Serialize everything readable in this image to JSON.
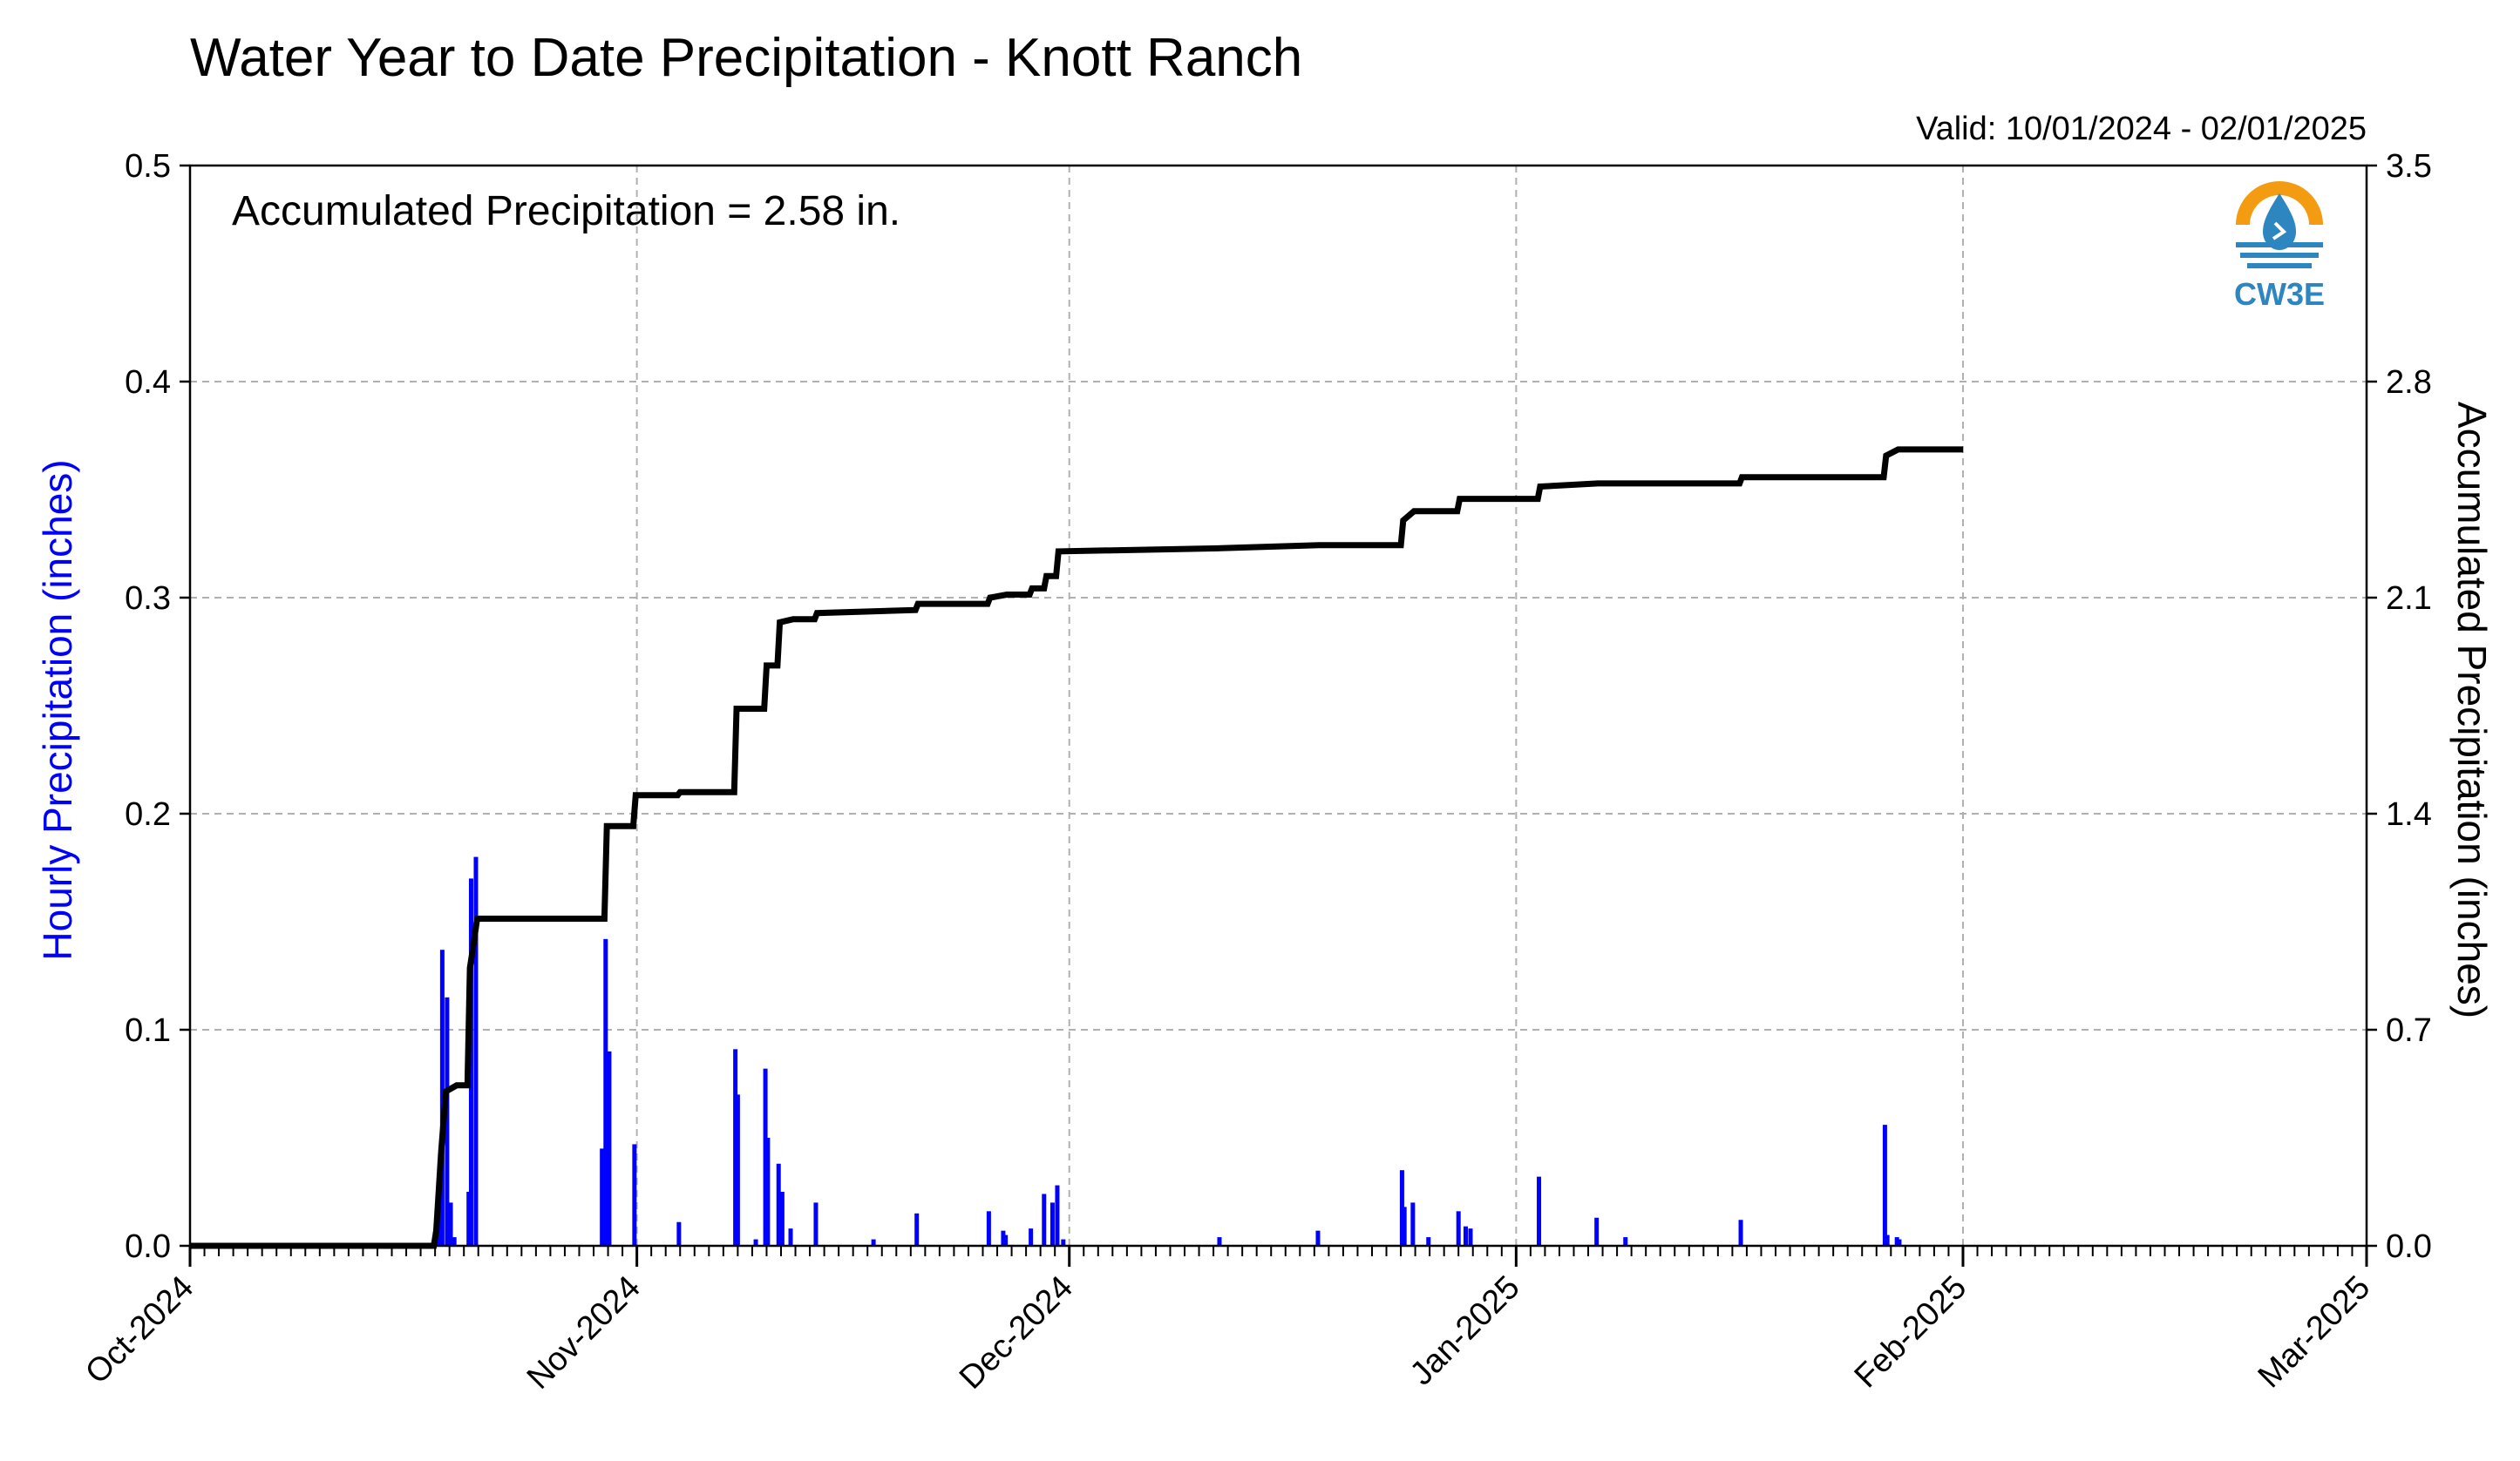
{
  "header": {
    "title": "Water Year to Date Precipitation - Knott Ranch",
    "valid": "Valid: 10/01/2024 - 02/01/2025"
  },
  "logo": {
    "text": "CW3E",
    "icon": "water-drop-sun-icon",
    "colors": [
      "#f39c12",
      "#2e86c1"
    ]
  },
  "annotation": "Accumulated Precipitation = 2.58 in.",
  "chart_data": {
    "type": "bar+line",
    "title": "Water Year to Date Precipitation - Knott Ranch",
    "subtitle": "Valid: 10/01/2024 - 02/01/2025",
    "ylabel_left": "Hourly Precipitation (inches)",
    "ylabel_right": "Accumulated Precipitation (inches)",
    "x_range": [
      "2024-10-01",
      "2025-03-01"
    ],
    "x_ticks": [
      "Oct-2024",
      "Nov-2024",
      "Dec-2024",
      "Jan-2025",
      "Feb-2025",
      "Mar-2025"
    ],
    "x_tick_days": [
      0,
      31,
      61,
      92,
      123,
      151
    ],
    "ylim_left": [
      0,
      0.5
    ],
    "yticks_left": [
      "0.0",
      "0.1",
      "0.2",
      "0.3",
      "0.4",
      "0.5"
    ],
    "ylim_right": [
      0,
      3.5
    ],
    "yticks_right": [
      "0.0",
      "0.7",
      "1.4",
      "2.1",
      "2.8",
      "3.5"
    ],
    "grid": true,
    "colors": {
      "hourly": "#0000ff",
      "accumulated": "#000000"
    },
    "hourly_series": {
      "name": "Hourly Precipitation (inches)",
      "points": [
        [
          "2024-10-18 00:00",
          0.005
        ],
        [
          "2024-10-18 06:00",
          0.03
        ],
        [
          "2024-10-18 12:00",
          0.137
        ],
        [
          "2024-10-18 20:00",
          0.115
        ],
        [
          "2024-10-19 02:00",
          0.02
        ],
        [
          "2024-10-19 08:00",
          0.004
        ],
        [
          "2024-10-20 08:00",
          0.025
        ],
        [
          "2024-10-20 12:00",
          0.17
        ],
        [
          "2024-10-20 20:00",
          0.18
        ],
        [
          "2024-10-29 14:00",
          0.045
        ],
        [
          "2024-10-29 20:00",
          0.142
        ],
        [
          "2024-10-30 02:00",
          0.09
        ],
        [
          "2024-10-31 20:00",
          0.047
        ],
        [
          "2024-11-03 22:00",
          0.011
        ],
        [
          "2024-11-07 20:00",
          0.091
        ],
        [
          "2024-11-08 00:00",
          0.07
        ],
        [
          "2024-11-09 06:00",
          0.003
        ],
        [
          "2024-11-09 22:00",
          0.082
        ],
        [
          "2024-11-10 02:00",
          0.05
        ],
        [
          "2024-11-10 20:00",
          0.038
        ],
        [
          "2024-11-11 02:00",
          0.025
        ],
        [
          "2024-11-11 16:00",
          0.008
        ],
        [
          "2024-11-13 10:00",
          0.02
        ],
        [
          "2024-11-17 10:00",
          0.003
        ],
        [
          "2024-11-20 10:00",
          0.015
        ],
        [
          "2024-11-25 10:00",
          0.016
        ],
        [
          "2024-11-26 10:00",
          0.007
        ],
        [
          "2024-11-26 14:00",
          0.005
        ],
        [
          "2024-11-28 08:00",
          0.008
        ],
        [
          "2024-11-29 06:00",
          0.024
        ],
        [
          "2024-11-29 20:00",
          0.02
        ],
        [
          "2024-11-30 04:00",
          0.028
        ],
        [
          "2024-11-30 14:00",
          0.003
        ],
        [
          "2024-12-11 10:00",
          0.004
        ],
        [
          "2024-12-18 06:00",
          0.007
        ],
        [
          "2024-12-24 02:00",
          0.035
        ],
        [
          "2024-12-24 06:00",
          0.018
        ],
        [
          "2024-12-24 20:00",
          0.02
        ],
        [
          "2024-12-25 22:00",
          0.004
        ],
        [
          "2024-12-28 00:00",
          0.016
        ],
        [
          "2024-12-28 12:00",
          0.009
        ],
        [
          "2024-12-28 20:00",
          0.008
        ],
        [
          "2025-01-02 14:00",
          0.032
        ],
        [
          "2025-01-06 14:00",
          0.013
        ],
        [
          "2025-01-08 14:00",
          0.004
        ],
        [
          "2025-01-16 14:00",
          0.012
        ],
        [
          "2025-01-26 14:00",
          0.056
        ],
        [
          "2025-01-26 18:00",
          0.005
        ],
        [
          "2025-01-27 10:00",
          0.004
        ],
        [
          "2025-01-27 14:00",
          0.003
        ]
      ]
    },
    "accumulated_series": {
      "name": "Accumulated Precipitation (inches)",
      "points": [
        [
          "2024-10-01 00:00",
          0.0
        ],
        [
          "2024-10-17 22:00",
          0.0
        ],
        [
          "2024-10-18 02:00",
          0.05
        ],
        [
          "2024-10-18 10:00",
          0.3
        ],
        [
          "2024-10-18 18:00",
          0.5
        ],
        [
          "2024-10-19 12:00",
          0.52
        ],
        [
          "2024-10-20 06:00",
          0.52
        ],
        [
          "2024-10-20 10:00",
          0.9
        ],
        [
          "2024-10-20 14:00",
          0.95
        ],
        [
          "2024-10-20 22:00",
          1.06
        ],
        [
          "2024-10-29 18:00",
          1.06
        ],
        [
          "2024-10-29 22:00",
          1.36
        ],
        [
          "2024-10-31 18:00",
          1.36
        ],
        [
          "2024-10-31 22:00",
          1.46
        ],
        [
          "2024-11-03 20:00",
          1.46
        ],
        [
          "2024-11-04 00:00",
          1.47
        ],
        [
          "2024-11-07 18:00",
          1.47
        ],
        [
          "2024-11-07 22:00",
          1.74
        ],
        [
          "2024-11-09 20:00",
          1.74
        ],
        [
          "2024-11-10 00:00",
          1.88
        ],
        [
          "2024-11-10 18:00",
          1.88
        ],
        [
          "2024-11-10 22:00",
          2.02
        ],
        [
          "2024-11-11 20:00",
          2.03
        ],
        [
          "2024-11-13 08:00",
          2.03
        ],
        [
          "2024-11-13 12:00",
          2.05
        ],
        [
          "2024-11-20 08:00",
          2.06
        ],
        [
          "2024-11-20 12:00",
          2.08
        ],
        [
          "2024-11-25 08:00",
          2.08
        ],
        [
          "2024-11-25 12:00",
          2.1
        ],
        [
          "2024-11-26 16:00",
          2.11
        ],
        [
          "2024-11-28 06:00",
          2.11
        ],
        [
          "2024-11-28 10:00",
          2.13
        ],
        [
          "2024-11-29 06:00",
          2.13
        ],
        [
          "2024-11-29 10:00",
          2.17
        ],
        [
          "2024-11-30 02:00",
          2.17
        ],
        [
          "2024-11-30 06:00",
          2.25
        ],
        [
          "2024-12-11 12:00",
          2.26
        ],
        [
          "2024-12-18 08:00",
          2.27
        ],
        [
          "2024-12-24 00:00",
          2.27
        ],
        [
          "2024-12-24 04:00",
          2.35
        ],
        [
          "2024-12-24 22:00",
          2.38
        ],
        [
          "2024-12-27 22:00",
          2.38
        ],
        [
          "2024-12-28 02:00",
          2.42
        ],
        [
          "2025-01-02 12:00",
          2.42
        ],
        [
          "2025-01-02 16:00",
          2.46
        ],
        [
          "2025-01-06 16:00",
          2.47
        ],
        [
          "2025-01-08 16:00",
          2.47
        ],
        [
          "2025-01-16 12:00",
          2.47
        ],
        [
          "2025-01-16 16:00",
          2.49
        ],
        [
          "2025-01-26 12:00",
          2.49
        ],
        [
          "2025-01-26 16:00",
          2.56
        ],
        [
          "2025-01-27 12:00",
          2.58
        ],
        [
          "2025-02-01 00:00",
          2.58
        ]
      ]
    }
  }
}
